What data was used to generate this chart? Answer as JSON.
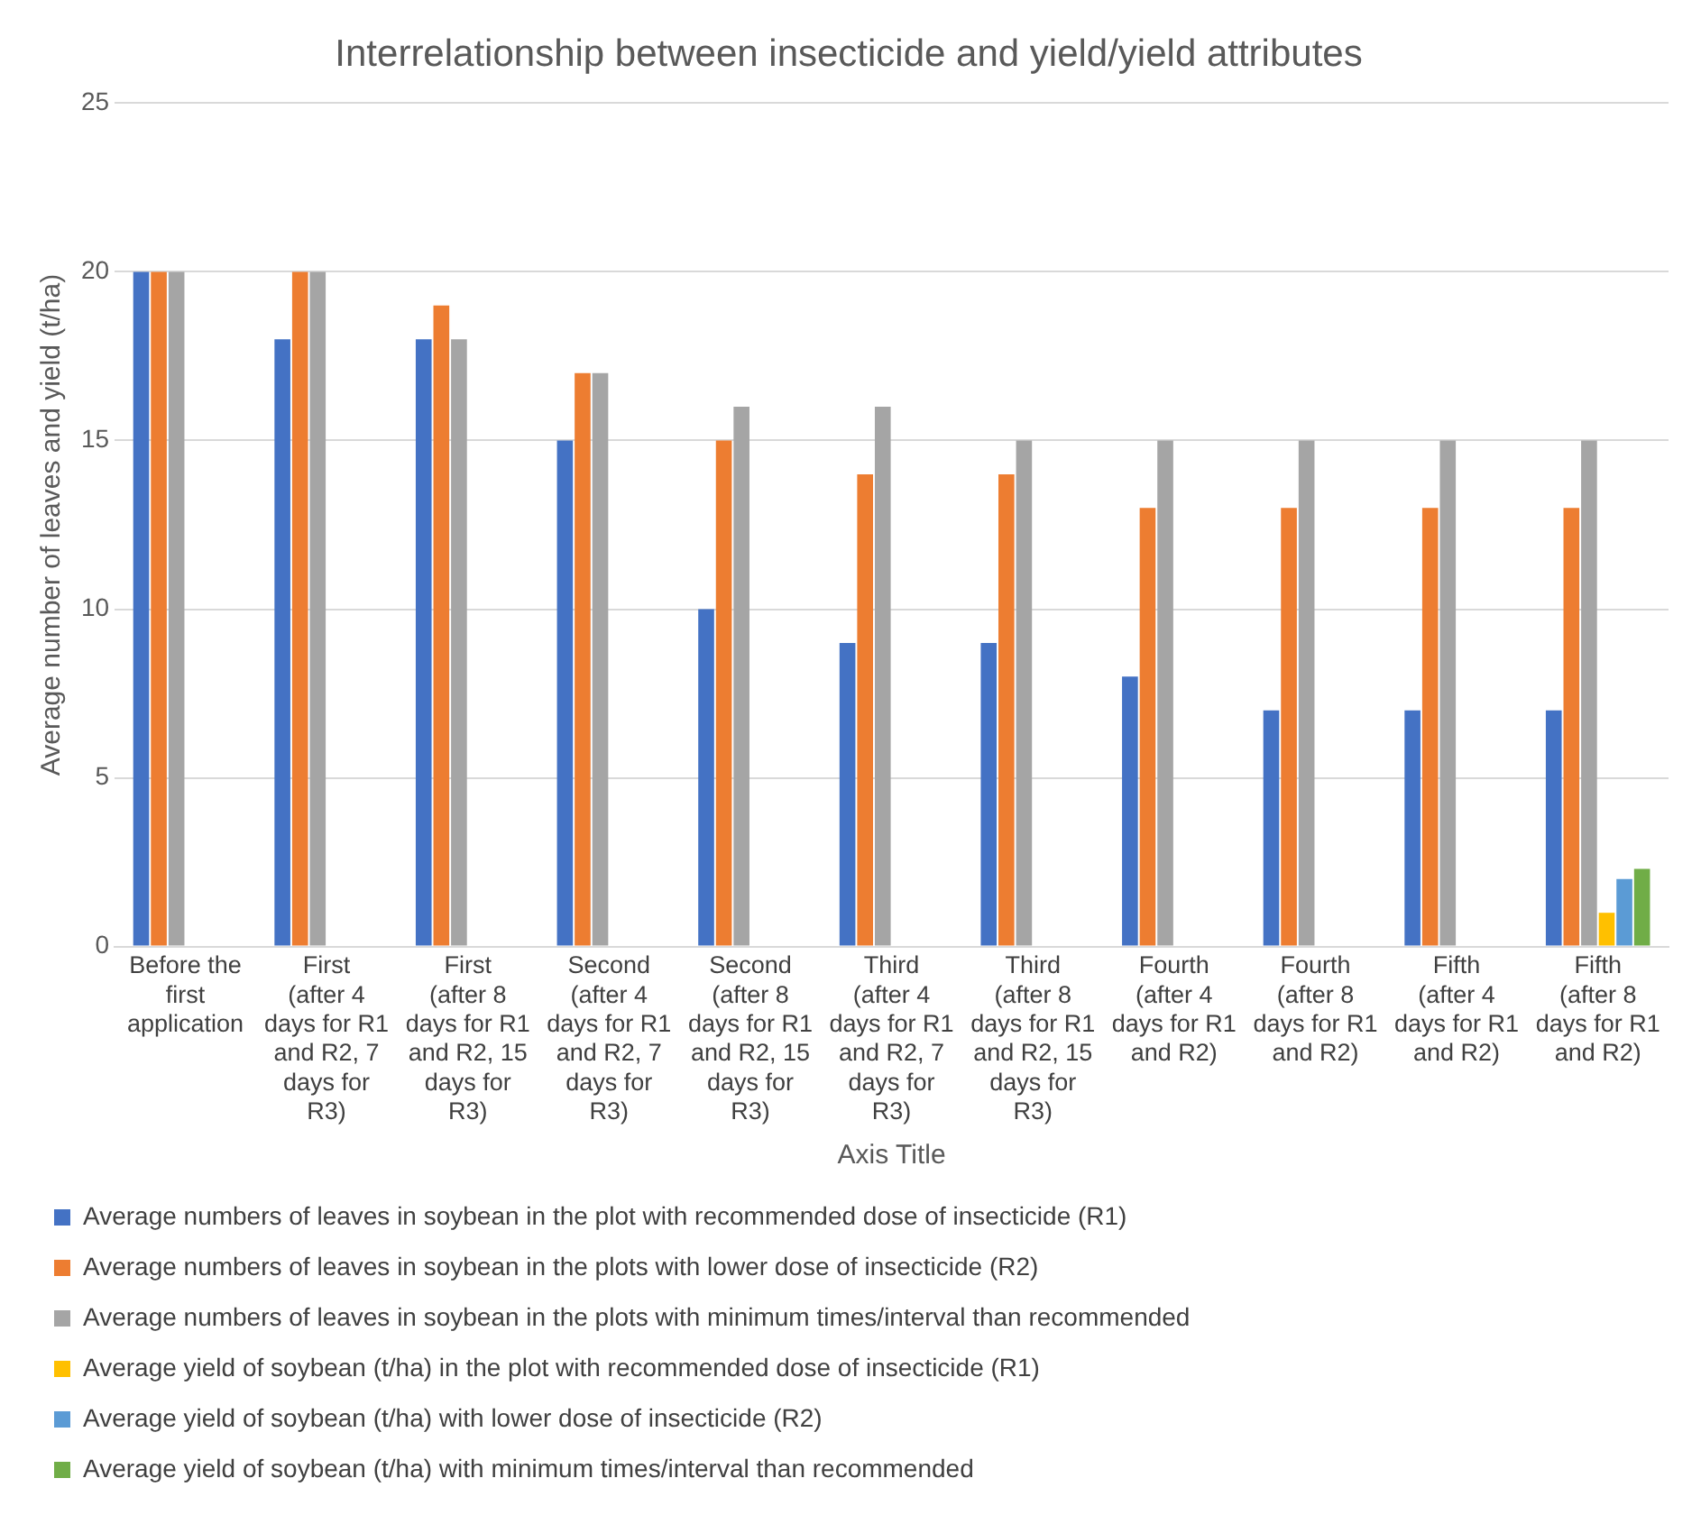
{
  "chart_data": {
    "type": "bar",
    "title": "Interrelationship between insecticide and yield/yield attributes",
    "xlabel": "Axis Title",
    "ylabel": "Average number of leaves and yield (t/ha)",
    "categories": [
      "Before the first application",
      "First (after 4 days for R1 and R2, 7 days for R3)",
      "First (after 8 days for R1 and R2, 15 days for R3)",
      "Second (after 4 days for R1 and R2, 7 days for R3)",
      "Second (after 8 days for R1 and R2, 15 days for R3)",
      "Third (after 4 days for R1 and R2, 7 days for R3)",
      "Third (after 8 days for R1 and R2, 15 days for R3)",
      "Fourth (after 4 days for R1 and R2)",
      "Fourth (after 8 days for R1 and R2)",
      "Fifth (after 4 days for R1 and R2)",
      "Fifth (after 8 days for R1 and R2)"
    ],
    "series": [
      {
        "name": "Average numbers of leaves in soybean in the plot with recommended dose of insecticide (R1)",
        "color": "#4472c4",
        "values": [
          20,
          18,
          18,
          15,
          10,
          9,
          9,
          8,
          7,
          7,
          7
        ]
      },
      {
        "name": "Average numbers of leaves in soybean in the plots with lower dose of insecticide (R2)",
        "color": "#ed7d31",
        "values": [
          20,
          20,
          19,
          17,
          15,
          14,
          14,
          13,
          13,
          13,
          13
        ]
      },
      {
        "name": "Average numbers of leaves in soybean in the plots with minimum times/interval than recommended",
        "color": "#a5a5a5",
        "values": [
          20,
          20,
          18,
          17,
          16,
          16,
          15,
          15,
          15,
          15,
          15
        ]
      },
      {
        "name": "Average yield of soybean (t/ha) in the plot with recommended dose of insecticide (R1)",
        "color": "#ffc000",
        "values": [
          null,
          null,
          null,
          null,
          null,
          null,
          null,
          null,
          null,
          null,
          1
        ]
      },
      {
        "name": "Average yield of soybean (t/ha) with lower dose of insecticide (R2)",
        "color": "#5b9bd5",
        "values": [
          null,
          null,
          null,
          null,
          null,
          null,
          null,
          null,
          null,
          null,
          2
        ]
      },
      {
        "name": "Average yield of soybean (t/ha) with minimum times/interval than recommended",
        "color": "#70ad47",
        "values": [
          null,
          null,
          null,
          null,
          null,
          null,
          null,
          null,
          null,
          null,
          2.3
        ]
      }
    ],
    "ylim": [
      0,
      25
    ],
    "yticks": [
      0,
      5,
      10,
      15,
      20,
      25
    ],
    "grid": "y",
    "legend": "bottom"
  }
}
